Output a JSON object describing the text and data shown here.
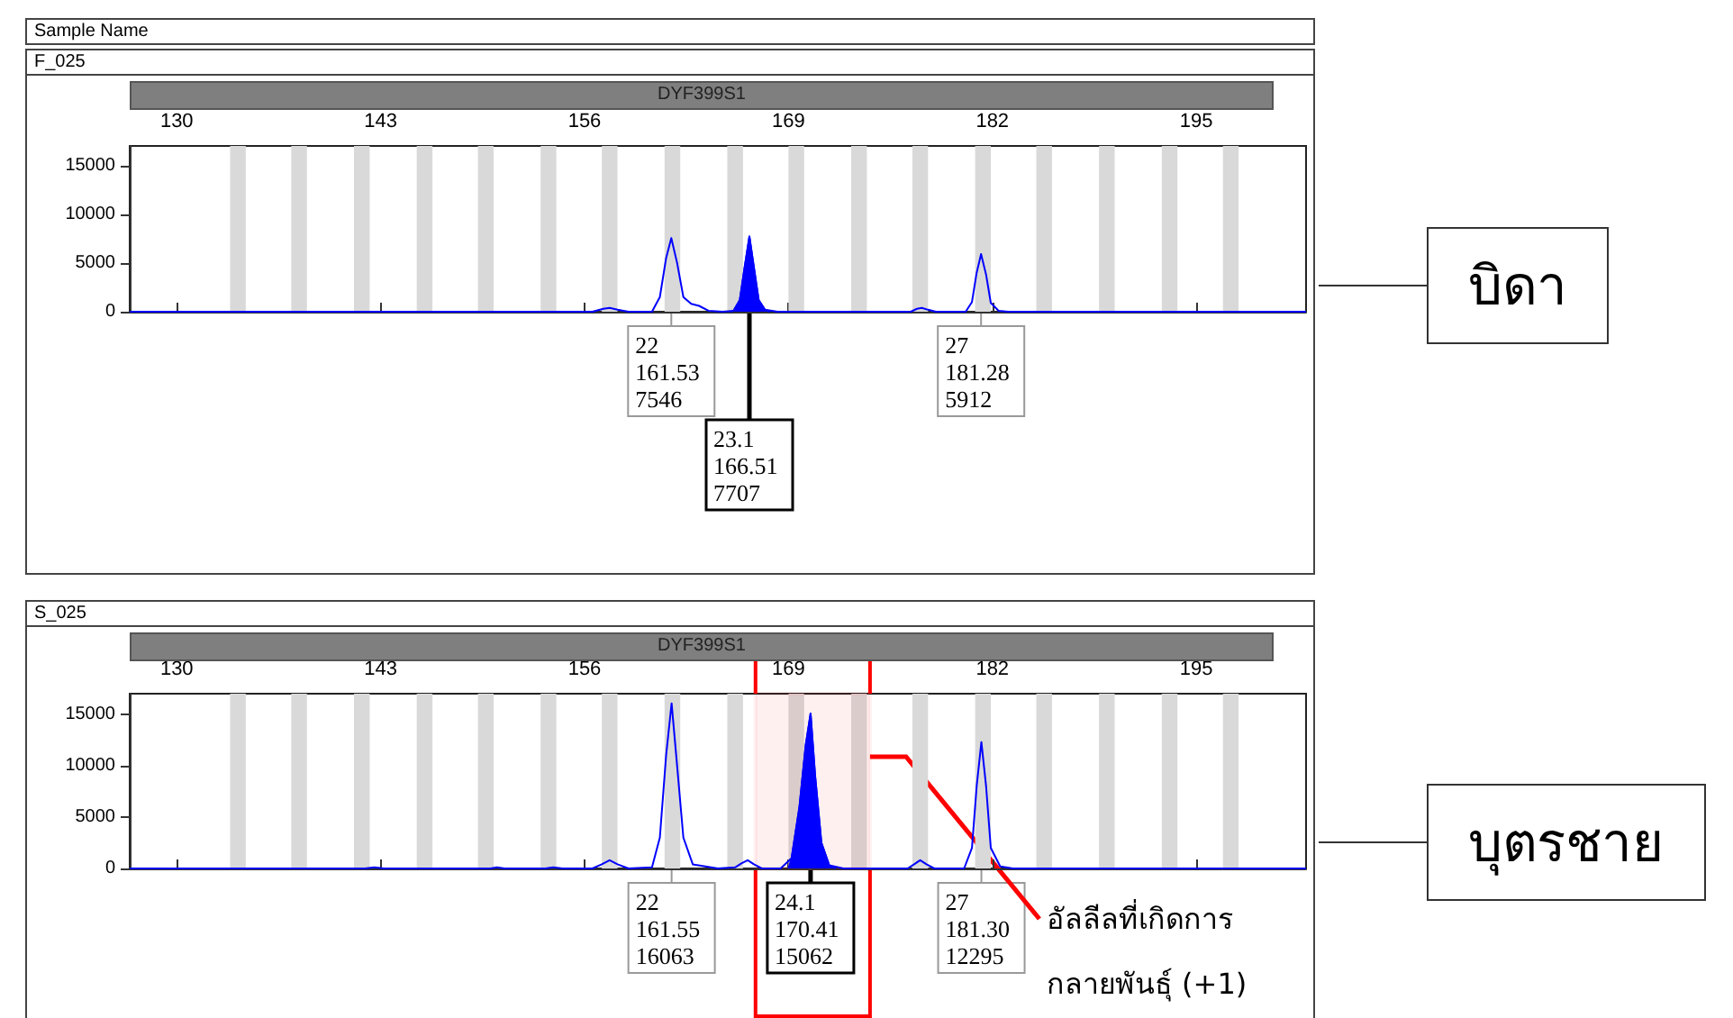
{
  "chart_data": [
    {
      "type": "line",
      "title": "F_025",
      "subtitle": "DYF399S1",
      "xlim": [
        127,
        202
      ],
      "xticks": [
        130,
        143,
        156,
        169,
        182,
        195
      ],
      "ylim": [
        0,
        17000
      ],
      "yticks": [
        0,
        5000,
        10000,
        15000
      ],
      "marker": "none",
      "series": [
        {
          "color": "#0000ff",
          "x": [
            127,
            150,
            156.5,
            157.2,
            157.6,
            158.1,
            158.8,
            160.3,
            160.8,
            161.2,
            161.53,
            161.9,
            162.3,
            162.8,
            163.3,
            163.9,
            164.8,
            165.5,
            165.9,
            166.2,
            166.51,
            166.8,
            167.1,
            167.5,
            168.3,
            176.8,
            177.2,
            177.5,
            177.9,
            178.4,
            180.3,
            180.7,
            181.0,
            181.28,
            181.6,
            181.9,
            182.4,
            183,
            202
          ],
          "values": [
            0,
            0,
            0,
            300,
            400,
            200,
            0,
            0,
            1500,
            5500,
            7546,
            5000,
            1500,
            800,
            600,
            100,
            0,
            100,
            1200,
            4500,
            7707,
            4500,
            1200,
            200,
            0,
            0,
            300,
            400,
            200,
            0,
            0,
            1000,
            4000,
            5912,
            3800,
            900,
            100,
            0,
            0
          ]
        },
        {
          "type": "area",
          "color": "#0000ff",
          "x": [
            165.3,
            165.5,
            165.9,
            166.2,
            166.51,
            166.8,
            167.1,
            167.5,
            167.8
          ],
          "values": [
            0,
            100,
            1200,
            4500,
            7707,
            4500,
            1200,
            200,
            0
          ]
        }
      ],
      "bands": [
        {
          "axis": "x",
          "from": 133.4,
          "to": 134.4,
          "color": "#d9d9d9"
        },
        {
          "axis": "x",
          "from": 137.3,
          "to": 138.3,
          "color": "#d9d9d9"
        },
        {
          "axis": "x",
          "from": 141.3,
          "to": 142.3,
          "color": "#d9d9d9"
        },
        {
          "axis": "x",
          "from": 145.3,
          "to": 146.3,
          "color": "#d9d9d9"
        },
        {
          "axis": "x",
          "from": 149.2,
          "to": 150.2,
          "color": "#d9d9d9"
        },
        {
          "axis": "x",
          "from": 153.2,
          "to": 154.2,
          "color": "#d9d9d9"
        },
        {
          "axis": "x",
          "from": 157.1,
          "to": 158.1,
          "color": "#d9d9d9"
        },
        {
          "axis": "x",
          "from": 161.1,
          "to": 162.1,
          "color": "#d9d9d9"
        },
        {
          "axis": "x",
          "from": 165.1,
          "to": 166.1,
          "color": "#d9d9d9"
        },
        {
          "axis": "x",
          "from": 169,
          "to": 170,
          "color": "#d9d9d9"
        },
        {
          "axis": "x",
          "from": 173,
          "to": 174,
          "color": "#d9d9d9"
        },
        {
          "axis": "x",
          "from": 176.9,
          "to": 177.9,
          "color": "#d9d9d9"
        },
        {
          "axis": "x",
          "from": 180.9,
          "to": 181.9,
          "color": "#d9d9d9"
        },
        {
          "axis": "x",
          "from": 184.8,
          "to": 185.8,
          "color": "#d9d9d9"
        },
        {
          "axis": "x",
          "from": 188.8,
          "to": 189.8,
          "color": "#d9d9d9"
        },
        {
          "axis": "x",
          "from": 192.8,
          "to": 193.8,
          "color": "#d9d9d9"
        },
        {
          "axis": "x",
          "from": 196.7,
          "to": 197.7,
          "color": "#d9d9d9"
        }
      ],
      "annotations": [
        "บิดา",
        "Sample Name",
        {
          "text": "22\n161.53\n7546",
          "x": 161.53
        },
        {
          "text": "23.1\n166.51\n7707",
          "x": 166.51
        },
        {
          "text": "27\n181.28\n5912",
          "x": 181.28
        }
      ]
    },
    {
      "type": "line",
      "title": "S_025",
      "subtitle": "DYF399S1",
      "xlim": [
        127,
        202
      ],
      "xticks": [
        130,
        143,
        156,
        169,
        182,
        195
      ],
      "ylim": [
        0,
        17000
      ],
      "yticks": [
        0,
        5000,
        10000,
        15000
      ],
      "marker": "none",
      "series": [
        {
          "color": "#0000ff",
          "x": [
            127,
            142,
            142.6,
            143.2,
            150,
            150.4,
            150.9,
            152,
            153.5,
            154,
            154.6,
            156.5,
            157.1,
            157.6,
            158.1,
            158.8,
            160.3,
            160.8,
            161.2,
            161.55,
            161.9,
            162.3,
            162.9,
            164.5,
            165.6,
            166.0,
            166.4,
            166.8,
            167.3,
            168.5,
            169.2,
            169.7,
            170.1,
            170.41,
            170.7,
            171.1,
            171.6,
            172.5,
            176.6,
            177.1,
            177.4,
            177.8,
            178.3,
            180.2,
            180.7,
            181.0,
            181.3,
            181.6,
            181.9,
            182.5,
            183.3,
            202
          ],
          "values": [
            0,
            0,
            100,
            0,
            0,
            100,
            0,
            0,
            0,
            100,
            0,
            0,
            400,
            800,
            400,
            0,
            100,
            3000,
            11000,
            16063,
            10000,
            3000,
            400,
            0,
            100,
            500,
            800,
            400,
            0,
            0,
            1000,
            6000,
            12000,
            15062,
            9000,
            2500,
            300,
            0,
            0,
            500,
            800,
            400,
            0,
            0,
            2000,
            8000,
            12295,
            8000,
            2000,
            200,
            0,
            0
          ]
        },
        {
          "type": "area",
          "color": "#0000ff",
          "x": [
            169,
            169.2,
            169.7,
            170.1,
            170.41,
            170.7,
            171.1,
            171.6,
            172
          ],
          "values": [
            0,
            1000,
            6000,
            12000,
            15062,
            9000,
            2500,
            300,
            0
          ]
        }
      ],
      "bands": [
        {
          "axis": "x",
          "from": 133.4,
          "to": 134.4,
          "color": "#d9d9d9"
        },
        {
          "axis": "x",
          "from": 137.3,
          "to": 138.3,
          "color": "#d9d9d9"
        },
        {
          "axis": "x",
          "from": 141.3,
          "to": 142.3,
          "color": "#d9d9d9"
        },
        {
          "axis": "x",
          "from": 145.3,
          "to": 146.3,
          "color": "#d9d9d9"
        },
        {
          "axis": "x",
          "from": 149.2,
          "to": 150.2,
          "color": "#d9d9d9"
        },
        {
          "axis": "x",
          "from": 153.2,
          "to": 154.2,
          "color": "#d9d9d9"
        },
        {
          "axis": "x",
          "from": 157.1,
          "to": 158.1,
          "color": "#d9d9d9"
        },
        {
          "axis": "x",
          "from": 161.1,
          "to": 162.1,
          "color": "#d9d9d9"
        },
        {
          "axis": "x",
          "from": 165.1,
          "to": 166.1,
          "color": "#d9d9d9"
        },
        {
          "axis": "x",
          "from": 169,
          "to": 170,
          "color": "#d9d9d9"
        },
        {
          "axis": "x",
          "from": 173,
          "to": 174,
          "color": "#d9d9d9"
        },
        {
          "axis": "x",
          "from": 176.9,
          "to": 177.9,
          "color": "#d9d9d9"
        },
        {
          "axis": "x",
          "from": 180.9,
          "to": 181.9,
          "color": "#d9d9d9"
        },
        {
          "axis": "x",
          "from": 184.8,
          "to": 185.8,
          "color": "#d9d9d9"
        },
        {
          "axis": "x",
          "from": 188.8,
          "to": 189.8,
          "color": "#d9d9d9"
        },
        {
          "axis": "x",
          "from": 192.8,
          "to": 193.8,
          "color": "#d9d9d9"
        },
        {
          "axis": "x",
          "from": 196.7,
          "to": 197.7,
          "color": "#d9d9d9"
        },
        {
          "axis": "x",
          "from": 166.9,
          "to": 174.2,
          "color": "#ff0000",
          "label": "อัลลีลที่เกิดการ\nกลายพันธุ์ (+1)"
        }
      ],
      "annotations": [
        "บุตรชาย",
        {
          "text": "22\n161.55\n16063",
          "x": 161.55
        },
        {
          "text": "24.1\n170.41\n15062",
          "x": 170.41
        },
        {
          "text": "27\n181.30\n12295",
          "x": 181.3
        }
      ]
    }
  ]
}
